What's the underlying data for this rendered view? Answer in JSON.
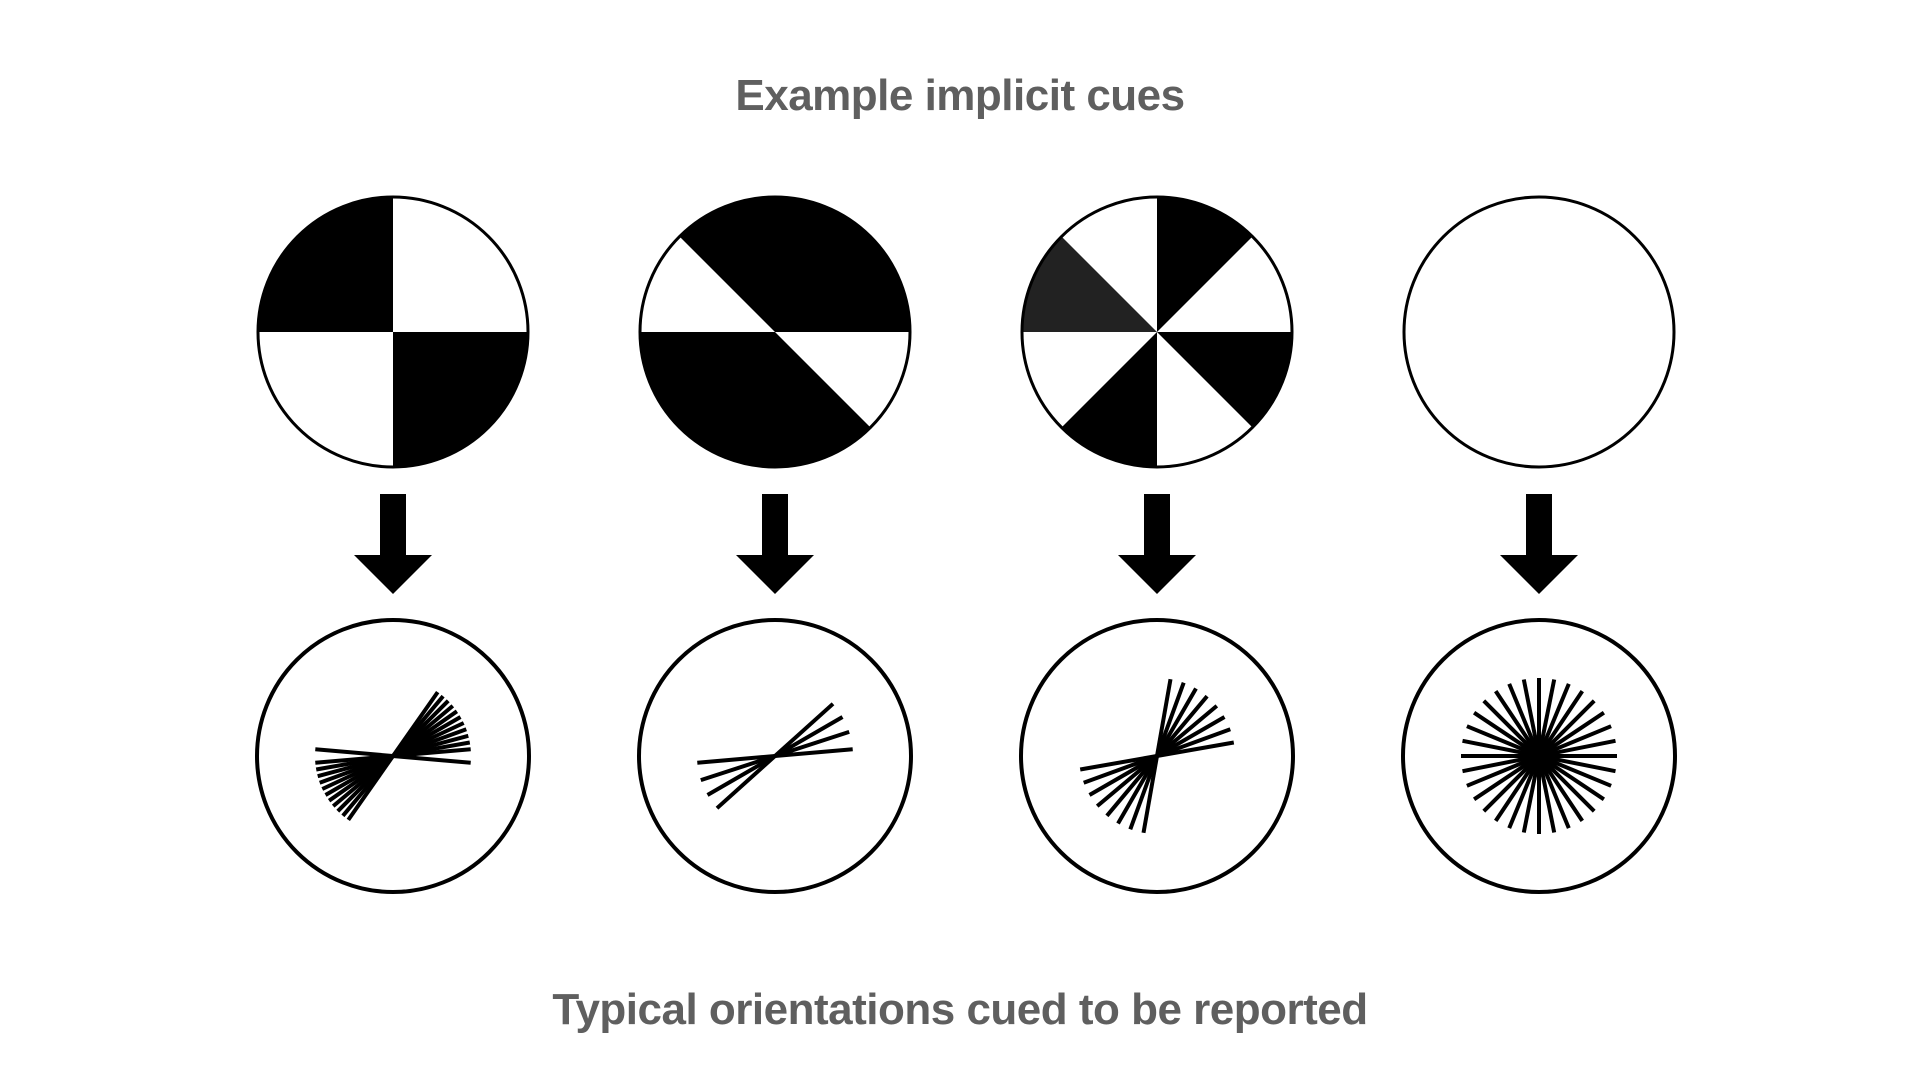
{
  "titles": {
    "top": "Example implicit cues",
    "bottom": "Typical orientations cued to be reported"
  },
  "colors": {
    "title": "#5f5f5f",
    "ink": "#000000",
    "dark_wedge": "#222222",
    "background": "#ffffff"
  },
  "columns": [
    {
      "id": "quadrants",
      "cue": "checkerboard-quadrants",
      "report_orientations_deg": [
        -5,
        5,
        10,
        15,
        20,
        25,
        30,
        35,
        40,
        45,
        50,
        55
      ]
    },
    {
      "id": "halves-diagonal",
      "cue": "half-circle-with-diagonal-wedges",
      "report_orientations_deg": [
        5,
        18,
        30,
        42
      ]
    },
    {
      "id": "octants",
      "cue": "eight-wedge-pattern",
      "report_orientations_deg": [
        10,
        20,
        30,
        40,
        50,
        60,
        70,
        80
      ]
    },
    {
      "id": "uninformative",
      "cue": "empty-circle",
      "report_orientations_deg": [
        0,
        11.25,
        22.5,
        33.75,
        45,
        56.25,
        67.5,
        78.75,
        90,
        101.25,
        112.5,
        123.75,
        135,
        146.25,
        157.5,
        168.75
      ]
    }
  ]
}
